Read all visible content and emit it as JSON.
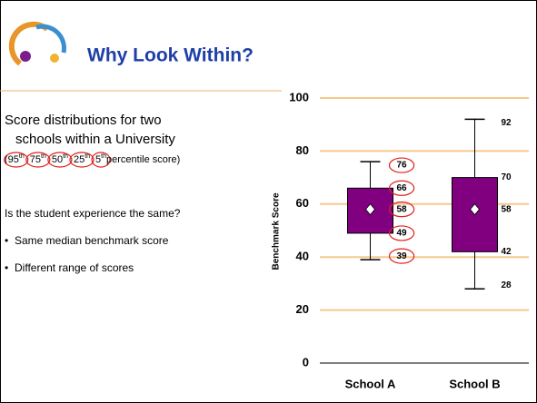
{
  "slide": {
    "title": "Why Look Within?",
    "intro_lines": [
      "Score distributions for two",
      "schools within a University"
    ],
    "percentile_note": {
      "open": "(",
      "items": [
        {
          "n": "95",
          "sup": "th"
        },
        {
          "n": "75",
          "sup": "th"
        },
        {
          "n": "50",
          "sup": "th"
        },
        {
          "n": "25",
          "sup": "th"
        },
        {
          "n": "5",
          "sup": "th"
        }
      ],
      "tail": " percentile score)"
    },
    "question": "Is the student experience the same?",
    "bullets": [
      "Same median benchmark score",
      "Different range of scores"
    ]
  },
  "chart_data": {
    "type": "box",
    "ylabel": "Benchmark Score",
    "categories": [
      "School A",
      "School B"
    ],
    "boxes": [
      {
        "low": 39,
        "q1": 49,
        "median": 58,
        "q3": 66,
        "high": 76
      },
      {
        "low": 28,
        "q1": 42,
        "median": 58,
        "q3": 70,
        "high": 92
      }
    ],
    "circled": [
      true,
      false
    ],
    "color": "#800080",
    "grid": true,
    "grid_color": "#f6c88f",
    "ylim": [
      0,
      100
    ],
    "yticks": [
      0,
      20,
      40,
      60,
      80,
      100
    ]
  }
}
